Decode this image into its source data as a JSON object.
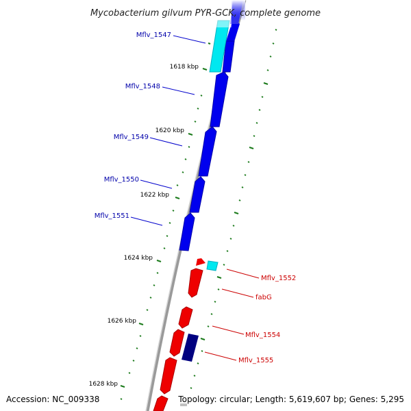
{
  "title": "Mycobacterium gilvum PYR-GCK, complete genome",
  "footer": {
    "accession": "Accession: NC_009338",
    "topology": "Topology: circular; Length: 5,619,607 bp; Genes: 5,295"
  },
  "kbp_labels": [
    "1618 kbp",
    "1620 kbp",
    "1622 kbp",
    "1624 kbp",
    "1626 kbp",
    "1628 kbp"
  ],
  "left_genes": [
    "Mflv_1547",
    "Mflv_1548",
    "Mflv_1549",
    "Mflv_1550",
    "Mflv_1551"
  ],
  "right_genes": [
    "Mflv_1552",
    "fabG",
    "Mflv_1554",
    "Mflv_1555"
  ],
  "colors": {
    "forward_cds": "#0000ee",
    "reverse_cds": "#ee0000",
    "rna_feature": "#00e8f0",
    "dark_cds": "#000080",
    "left_label": "#0000aa",
    "right_label": "#cc0000",
    "tick": "#1a7a1a",
    "backbone": "#9a9a9a"
  }
}
